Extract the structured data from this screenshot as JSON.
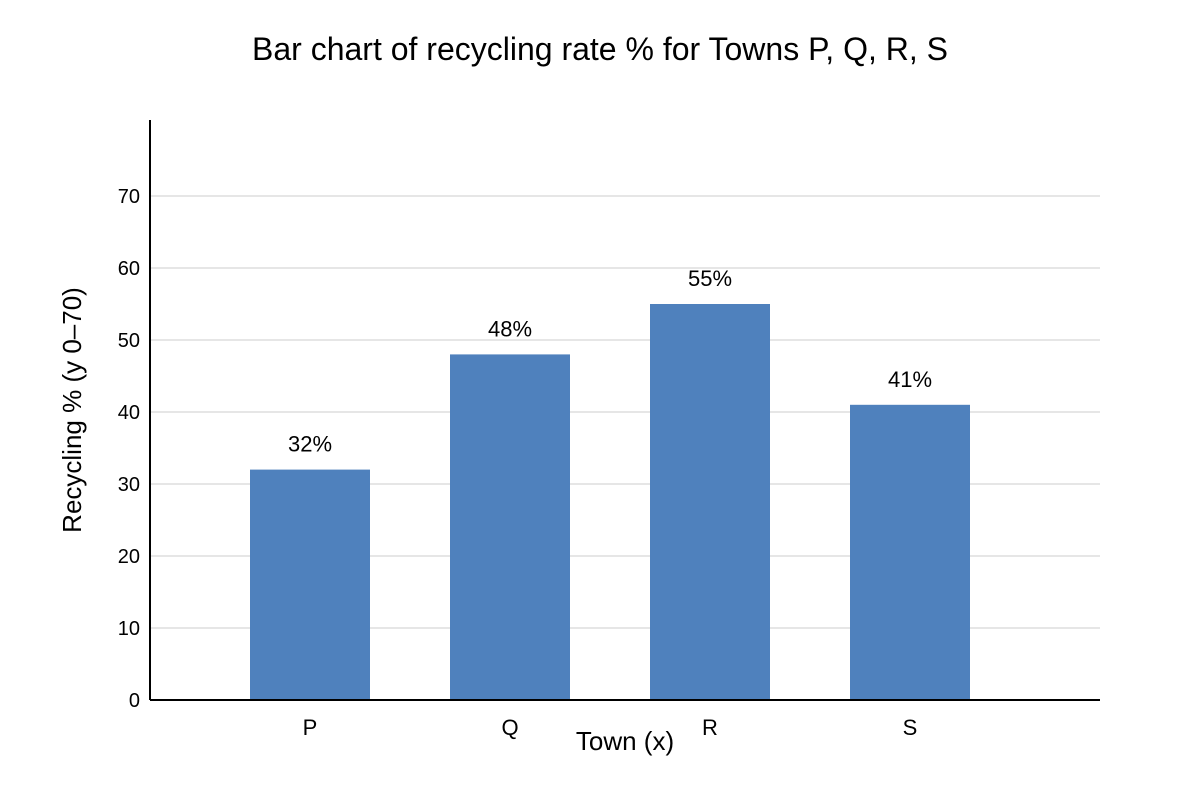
{
  "chart_data": {
    "type": "bar",
    "title": "Bar chart of recycling rate % for Towns P, Q, R, S",
    "xlabel": "Town (x)",
    "ylabel": "Recycling % (y 0–70)",
    "categories": [
      "P",
      "Q",
      "R",
      "S"
    ],
    "values": [
      32,
      48,
      55,
      41
    ],
    "value_labels": [
      "32%",
      "48%",
      "55%",
      "41%"
    ],
    "ylim": [
      0,
      80
    ],
    "yticks": [
      0,
      10,
      20,
      30,
      40,
      50,
      60,
      70
    ],
    "grid": true,
    "bar_color": "#4f81bd",
    "legend": "none"
  }
}
